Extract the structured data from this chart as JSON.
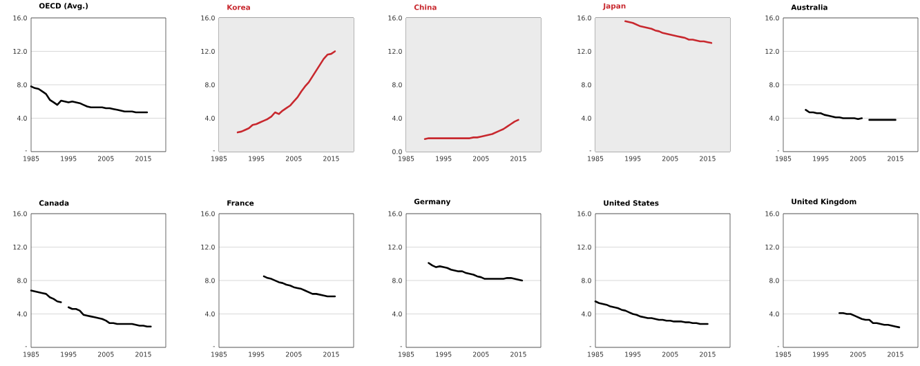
{
  "chart_data": [
    {
      "type": "line",
      "title": "OECD  (Avg.)",
      "xlim": [
        1985,
        2021
      ],
      "ylim": [
        0,
        16
      ],
      "xticks": [
        1985,
        1995,
        2005,
        2015
      ],
      "yticks": [
        {
          "value": 0,
          "label": "-"
        },
        {
          "value": 4,
          "label": "4.0"
        },
        {
          "value": 8,
          "label": "8.0"
        },
        {
          "value": 12,
          "label": "12.0"
        },
        {
          "value": 16,
          "label": "16.0"
        }
      ],
      "grid": "y",
      "x": [
        1985,
        1986,
        1987,
        1988,
        1989,
        1990,
        1991,
        1992,
        1993,
        1994,
        1995,
        1996,
        1997,
        1998,
        1999,
        2000,
        2001,
        2002,
        2003,
        2004,
        2005,
        2006,
        2007,
        2008,
        2009,
        2010,
        2011,
        2012,
        2013,
        2014,
        2015,
        2016
      ],
      "series": [
        {
          "color": "#000000",
          "values": [
            7.8,
            7.6,
            7.5,
            7.2,
            6.9,
            6.2,
            5.9,
            5.6,
            6.1,
            6.0,
            5.9,
            6.0,
            5.9,
            5.8,
            5.6,
            5.4,
            5.3,
            5.3,
            5.3,
            5.3,
            5.2,
            5.2,
            5.1,
            5.0,
            4.9,
            4.8,
            4.8,
            4.8,
            4.7,
            4.7,
            4.7,
            4.7
          ]
        }
      ]
    },
    {
      "type": "line",
      "title": "Korea",
      "xlim": [
        1985,
        2021
      ],
      "ylim": [
        0,
        16
      ],
      "xticks": [
        1985,
        1995,
        2005,
        2015
      ],
      "yticks": [
        {
          "value": 0,
          "label": "-"
        },
        {
          "value": 4,
          "label": "4.0"
        },
        {
          "value": 8,
          "label": "8.0"
        },
        {
          "value": 12,
          "label": "12.0"
        },
        {
          "value": 16,
          "label": "16.0"
        }
      ],
      "grid": "y",
      "bands": [
        {
          "axis": "x",
          "from": 1985,
          "to": 2021,
          "color": "#ebebeb"
        }
      ],
      "x": [
        1990,
        1991,
        1992,
        1993,
        1994,
        1995,
        1996,
        1997,
        1998,
        1999,
        2000,
        2001,
        2002,
        2003,
        2004,
        2005,
        2006,
        2007,
        2008,
        2009,
        2010,
        2011,
        2012,
        2013,
        2014,
        2015,
        2016
      ],
      "series": [
        {
          "color": "#c8282e",
          "values": [
            2.3,
            2.4,
            2.6,
            2.8,
            3.2,
            3.3,
            3.5,
            3.7,
            3.9,
            4.2,
            4.7,
            4.5,
            4.9,
            5.2,
            5.5,
            6.0,
            6.5,
            7.2,
            7.8,
            8.3,
            9.0,
            9.7,
            10.4,
            11.1,
            11.6,
            11.7,
            12.0
          ]
        }
      ]
    },
    {
      "type": "line",
      "title": "China",
      "xlim": [
        1985,
        2021
      ],
      "ylim": [
        0,
        16
      ],
      "xticks": [
        1985,
        1995,
        2005,
        2015
      ],
      "yticks": [
        {
          "value": 0,
          "label": "0.0"
        },
        {
          "value": 4,
          "label": "4.0"
        },
        {
          "value": 8,
          "label": "8.0"
        },
        {
          "value": 12,
          "label": "12.0"
        },
        {
          "value": 16,
          "label": "16.0"
        }
      ],
      "grid": "y",
      "bands": [
        {
          "axis": "x",
          "from": 1985,
          "to": 2021,
          "color": "#ebebeb"
        }
      ],
      "x": [
        1990,
        1991,
        1992,
        1993,
        1994,
        1995,
        1996,
        1997,
        1998,
        1999,
        2000,
        2001,
        2002,
        2003,
        2004,
        2005,
        2006,
        2007,
        2008,
        2009,
        2010,
        2011,
        2012,
        2013,
        2014,
        2015
      ],
      "series": [
        {
          "color": "#c8282e",
          "values": [
            1.5,
            1.6,
            1.6,
            1.6,
            1.6,
            1.6,
            1.6,
            1.6,
            1.6,
            1.6,
            1.6,
            1.6,
            1.6,
            1.7,
            1.7,
            1.8,
            1.9,
            2.0,
            2.1,
            2.3,
            2.5,
            2.7,
            3.0,
            3.3,
            3.6,
            3.8
          ]
        }
      ]
    },
    {
      "type": "line",
      "title": "Japan",
      "xlim": [
        1985,
        2021
      ],
      "ylim": [
        0,
        16
      ],
      "xticks": [
        1985,
        1995,
        2005,
        2015
      ],
      "yticks": [
        {
          "value": 0,
          "label": "-"
        },
        {
          "value": 4,
          "label": "4.0"
        },
        {
          "value": 8,
          "label": "8.0"
        },
        {
          "value": 12,
          "label": "12.0"
        },
        {
          "value": 16,
          "label": "16.0"
        }
      ],
      "grid": "y",
      "bands": [
        {
          "axis": "x",
          "from": 1985,
          "to": 2021,
          "color": "#ebebeb"
        }
      ],
      "x": [
        1993,
        1994,
        1995,
        1996,
        1997,
        1998,
        1999,
        2000,
        2001,
        2002,
        2003,
        2004,
        2005,
        2006,
        2007,
        2008,
        2009,
        2010,
        2011,
        2012,
        2013,
        2014,
        2015,
        2016
      ],
      "series": [
        {
          "color": "#c8282e",
          "values": [
            15.6,
            15.5,
            15.4,
            15.2,
            15.0,
            14.9,
            14.8,
            14.7,
            14.5,
            14.4,
            14.2,
            14.1,
            14.0,
            13.9,
            13.8,
            13.7,
            13.6,
            13.4,
            13.4,
            13.3,
            13.2,
            13.2,
            13.1,
            13.0
          ]
        }
      ]
    },
    {
      "type": "line",
      "title": "Australia",
      "xlim": [
        1985,
        2021
      ],
      "ylim": [
        0,
        16
      ],
      "xticks": [
        1985,
        1995,
        2005,
        2015
      ],
      "yticks": [
        {
          "value": 0,
          "label": "-"
        },
        {
          "value": 4,
          "label": "4.0"
        },
        {
          "value": 8,
          "label": "8.0"
        },
        {
          "value": 12,
          "label": "12.0"
        },
        {
          "value": 16,
          "label": "16.0"
        }
      ],
      "grid": "y",
      "x": [
        1991,
        1992,
        1993,
        1994,
        1995,
        1996,
        1997,
        1998,
        1999,
        2000,
        2001,
        2002,
        2003,
        2004,
        2005,
        2006,
        2007,
        2008,
        2009,
        2010,
        2011,
        2012,
        2013,
        2014,
        2015
      ],
      "series": [
        {
          "color": "#000000",
          "values": [
            5.0,
            4.7,
            4.7,
            4.6,
            4.6,
            4.4,
            4.3,
            4.2,
            4.1,
            4.1,
            4.0,
            4.0,
            4.0,
            4.0,
            3.9,
            4.0,
            null,
            3.8,
            3.8,
            3.8,
            3.8,
            3.8,
            3.8,
            3.8,
            3.8
          ]
        }
      ]
    },
    {
      "type": "line",
      "title": "Canada",
      "xlim": [
        1985,
        2021
      ],
      "ylim": [
        0,
        16
      ],
      "xticks": [
        1985,
        1995,
        2005,
        2015
      ],
      "yticks": [
        {
          "value": 0,
          "label": "-"
        },
        {
          "value": 4,
          "label": "4.0"
        },
        {
          "value": 8,
          "label": "8.0"
        },
        {
          "value": 12,
          "label": "12.0"
        },
        {
          "value": 16,
          "label": "16.0"
        }
      ],
      "grid": "y",
      "x": [
        1985,
        1986,
        1987,
        1988,
        1989,
        1990,
        1991,
        1992,
        1993,
        1994,
        1995,
        1996,
        1997,
        1998,
        1999,
        2000,
        2001,
        2002,
        2003,
        2004,
        2005,
        2006,
        2007,
        2008,
        2009,
        2010,
        2011,
        2012,
        2013,
        2014,
        2015,
        2016,
        2017
      ],
      "series": [
        {
          "color": "#000000",
          "values": [
            6.8,
            6.7,
            6.6,
            6.5,
            6.4,
            6.0,
            5.8,
            5.5,
            5.4,
            null,
            4.8,
            4.6,
            4.6,
            4.4,
            3.9,
            3.8,
            3.7,
            3.6,
            3.5,
            3.4,
            3.2,
            2.9,
            2.9,
            2.8,
            2.8,
            2.8,
            2.8,
            2.8,
            2.7,
            2.6,
            2.6,
            2.5,
            2.5
          ]
        }
      ]
    },
    {
      "type": "line",
      "title": "France",
      "xlim": [
        1985,
        2021
      ],
      "ylim": [
        0,
        16
      ],
      "xticks": [
        1985,
        1995,
        2005,
        2015
      ],
      "yticks": [
        {
          "value": 0,
          "label": "-"
        },
        {
          "value": 4,
          "label": "4.0"
        },
        {
          "value": 8,
          "label": "8.0"
        },
        {
          "value": 12,
          "label": "12.0"
        },
        {
          "value": 16,
          "label": "16.0"
        }
      ],
      "grid": "y",
      "x": [
        1997,
        1998,
        1999,
        2000,
        2001,
        2002,
        2003,
        2004,
        2005,
        2006,
        2007,
        2008,
        2009,
        2010,
        2011,
        2012,
        2013,
        2014,
        2015,
        2016
      ],
      "series": [
        {
          "color": "#000000",
          "values": [
            8.5,
            8.3,
            8.2,
            8.0,
            7.8,
            7.7,
            7.5,
            7.4,
            7.2,
            7.1,
            7.0,
            6.8,
            6.6,
            6.4,
            6.4,
            6.3,
            6.2,
            6.1,
            6.1,
            6.1
          ]
        }
      ]
    },
    {
      "type": "line",
      "title": "Germany",
      "xlim": [
        1985,
        2021
      ],
      "ylim": [
        0,
        16
      ],
      "xticks": [
        1985,
        1995,
        2005,
        2015
      ],
      "yticks": [
        {
          "value": 0,
          "label": "-"
        },
        {
          "value": 4,
          "label": "4.0"
        },
        {
          "value": 8,
          "label": "8.0"
        },
        {
          "value": 12,
          "label": "12.0"
        },
        {
          "value": 16,
          "label": "16.0"
        }
      ],
      "grid": "y",
      "x": [
        1991,
        1992,
        1993,
        1994,
        1995,
        1996,
        1997,
        1998,
        1999,
        2000,
        2001,
        2002,
        2003,
        2004,
        2005,
        2006,
        2007,
        2008,
        2009,
        2010,
        2011,
        2012,
        2013,
        2014,
        2015,
        2016
      ],
      "series": [
        {
          "color": "#000000",
          "values": [
            10.1,
            9.8,
            9.6,
            9.7,
            9.6,
            9.5,
            9.3,
            9.2,
            9.1,
            9.1,
            8.9,
            8.8,
            8.7,
            8.5,
            8.4,
            8.2,
            8.2,
            8.2,
            8.2,
            8.2,
            8.2,
            8.3,
            8.3,
            8.2,
            8.1,
            8.0
          ]
        }
      ]
    },
    {
      "type": "line",
      "title": "United States",
      "xlim": [
        1985,
        2021
      ],
      "ylim": [
        0,
        16
      ],
      "xticks": [
        1985,
        1995,
        2005,
        2015
      ],
      "yticks": [
        {
          "value": 0,
          "label": "-"
        },
        {
          "value": 4,
          "label": "4.0"
        },
        {
          "value": 8,
          "label": "8.0"
        },
        {
          "value": 12,
          "label": "12.0"
        },
        {
          "value": 16,
          "label": "16.0"
        }
      ],
      "grid": "y",
      "x": [
        1985,
        1986,
        1987,
        1988,
        1989,
        1990,
        1991,
        1992,
        1993,
        1994,
        1995,
        1996,
        1997,
        1998,
        1999,
        2000,
        2001,
        2002,
        2003,
        2004,
        2005,
        2006,
        2007,
        2008,
        2009,
        2010,
        2011,
        2012,
        2013,
        2014,
        2015
      ],
      "series": [
        {
          "color": "#000000",
          "values": [
            5.5,
            5.3,
            5.2,
            5.1,
            4.9,
            4.8,
            4.7,
            4.5,
            4.4,
            4.2,
            4.0,
            3.9,
            3.7,
            3.6,
            3.5,
            3.5,
            3.4,
            3.3,
            3.3,
            3.2,
            3.2,
            3.1,
            3.1,
            3.1,
            3.0,
            3.0,
            2.9,
            2.9,
            2.8,
            2.8,
            2.8
          ]
        }
      ]
    },
    {
      "type": "line",
      "title": "United Kingdom",
      "xlim": [
        1985,
        2021
      ],
      "ylim": [
        0,
        16
      ],
      "xticks": [
        1985,
        1995,
        2005,
        2015
      ],
      "yticks": [
        {
          "value": 0,
          "label": "-"
        },
        {
          "value": 4,
          "label": "4.0"
        },
        {
          "value": 8,
          "label": "8.0"
        },
        {
          "value": 12,
          "label": "12.0"
        },
        {
          "value": 16,
          "label": "16.0"
        }
      ],
      "grid": "y",
      "x": [
        2000,
        2001,
        2002,
        2003,
        2004,
        2005,
        2006,
        2007,
        2008,
        2009,
        2010,
        2011,
        2012,
        2013,
        2014,
        2015,
        2016
      ],
      "series": [
        {
          "color": "#000000",
          "values": [
            4.1,
            4.1,
            4.0,
            4.0,
            3.8,
            3.6,
            3.4,
            3.3,
            3.3,
            2.9,
            2.9,
            2.8,
            2.7,
            2.7,
            2.6,
            2.5,
            2.4
          ]
        }
      ]
    }
  ]
}
